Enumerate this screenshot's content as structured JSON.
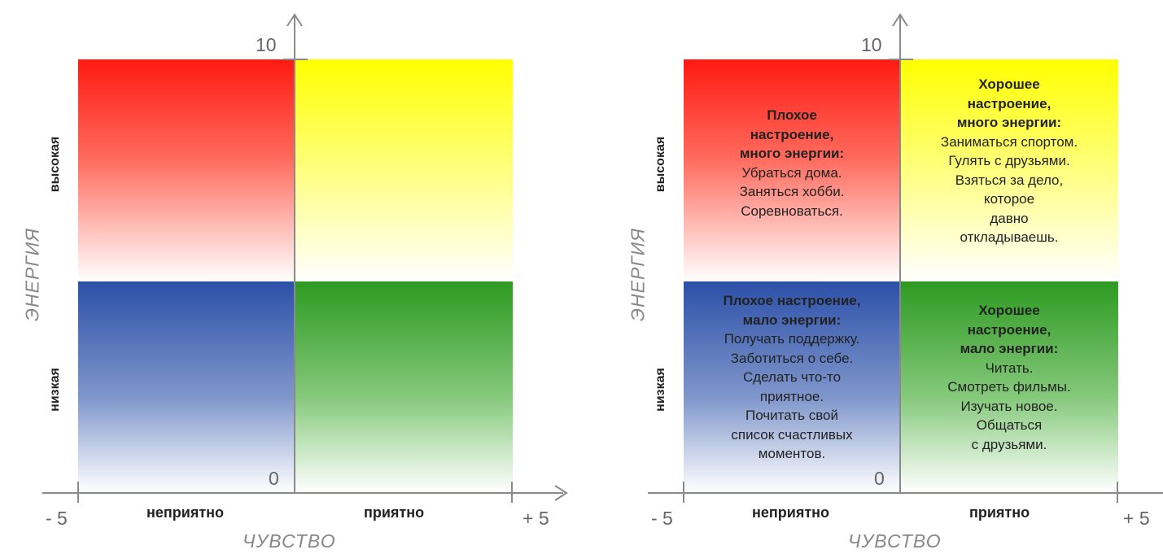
{
  "diagrams": [
    {
      "id": "left",
      "y_max_label": "10",
      "y_min_label": "0",
      "x_min_label": "- 5",
      "x_max_label": "+ 5",
      "x_axis_title": "ЧУВСТВО",
      "y_axis_title": "ЭНЕРГИЯ",
      "y_high_label": "высокая",
      "y_low_label": "низкая",
      "x_left_label": "неприятно",
      "x_right_label": "приятно",
      "quadrants": {
        "top_left": {
          "color": "#ff1a12",
          "lines": []
        },
        "top_right": {
          "color": "#ffff00",
          "lines": []
        },
        "bottom_left": {
          "color": "#2c50a8",
          "lines": []
        },
        "bottom_right": {
          "color": "#2d9a21",
          "lines": []
        }
      }
    },
    {
      "id": "right",
      "y_max_label": "10",
      "y_min_label": "0",
      "x_min_label": "- 5",
      "x_max_label": "+ 5",
      "x_axis_title": "ЧУВСТВО",
      "y_axis_title": "ЭНЕРГИЯ",
      "y_high_label": "высокая",
      "y_low_label": "низкая",
      "x_left_label": "неприятно",
      "x_right_label": "приятно",
      "quadrants": {
        "top_left": {
          "color": "#ff1a12",
          "heading": [
            "Плохое",
            "настроение,",
            "много энергии:"
          ],
          "lines": [
            "Убраться дома.",
            "Заняться хобби.",
            "Соревноваться."
          ]
        },
        "top_right": {
          "color": "#ffff00",
          "heading": [
            "Хорошее",
            "настроение,",
            "много энергии:"
          ],
          "lines": [
            "Заниматься спортом.",
            "Гулять с друзьями.",
            "Взяться за дело,",
            "которое",
            "давно",
            "откладываешь."
          ]
        },
        "bottom_left": {
          "color": "#2c50a8",
          "heading": [
            "Плохое настроение,",
            "мало энергии:"
          ],
          "lines": [
            "Получать поддержку.",
            "Заботиться о себе.",
            "Сделать что-то",
            "приятное.",
            "Почитать свой",
            "список счастливых",
            "моментов."
          ]
        },
        "bottom_right": {
          "color": "#2d9a21",
          "heading": [
            "Хорошее",
            "настроение,",
            "мало энергии:"
          ],
          "lines": [
            "Читать.",
            "Смотреть фильмы.",
            "Изучать новое.",
            "Общаться",
            "с друзьями."
          ]
        }
      }
    }
  ]
}
